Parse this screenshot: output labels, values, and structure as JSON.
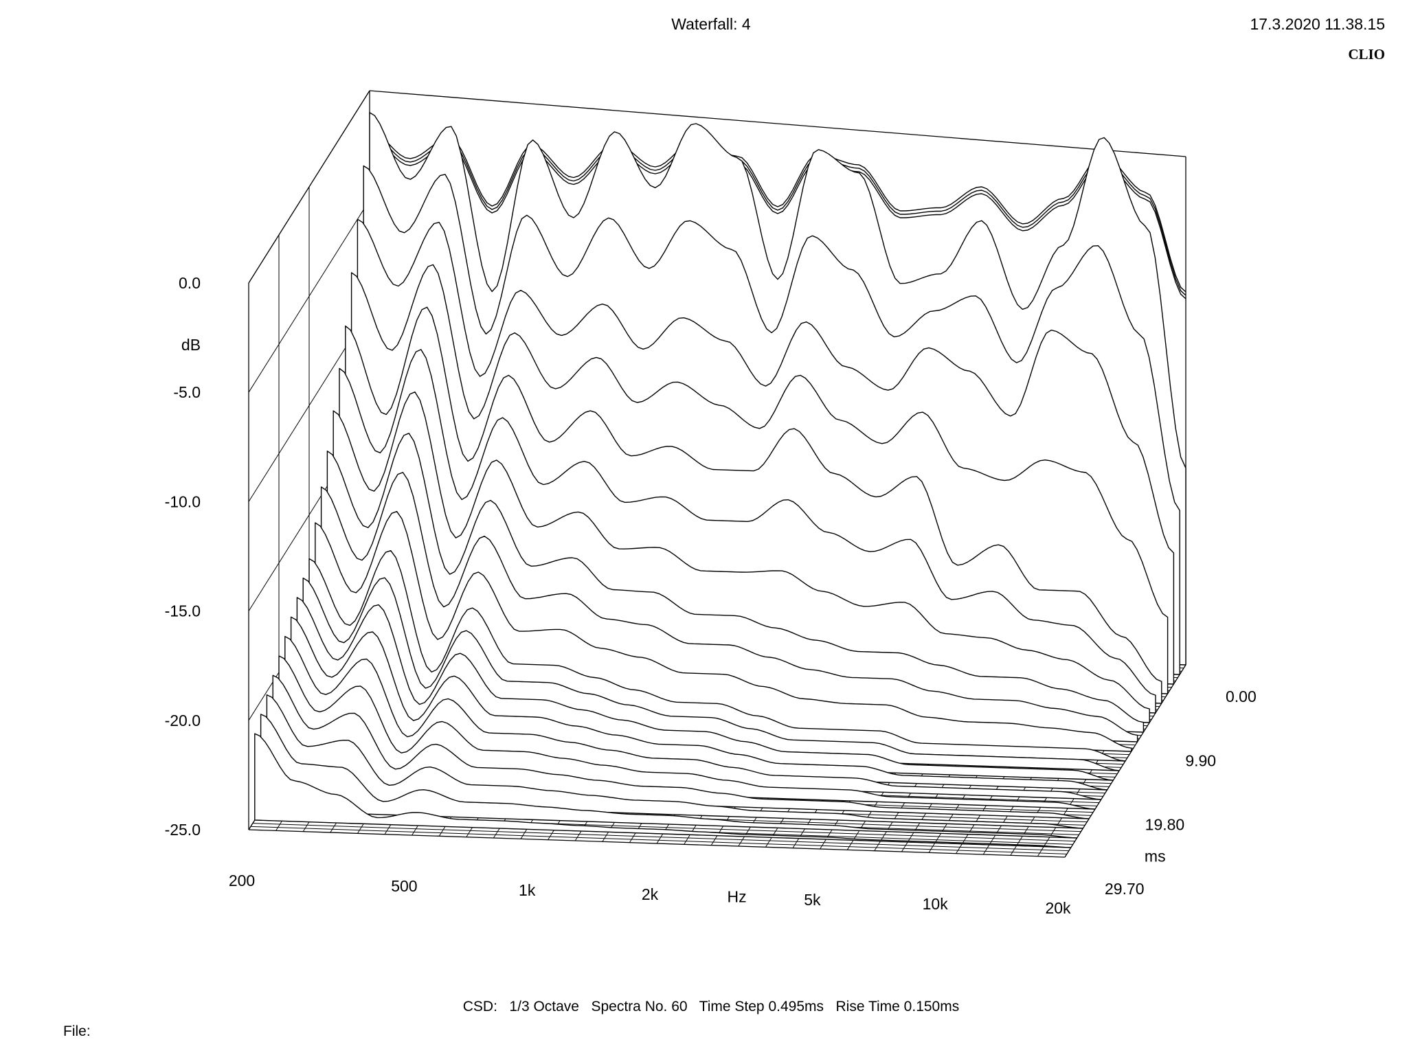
{
  "header": {
    "title": "Waterfall: 4",
    "timestamp": "17.3.2020 11.38.15",
    "brand": "CLIO"
  },
  "footer": {
    "settings": "CSD:   1/3 Octave   Spectra No. 60   Time Step 0.495ms   Rise Time 0.150ms",
    "file_label": "File:"
  },
  "chart_data": {
    "type": "waterfall",
    "title": "Waterfall: 4",
    "subtitle": "CSD:   1/3 Octave   Spectra No. 60   Time Step 0.495ms   Rise Time 0.150ms",
    "x_axis": {
      "label": "Hz",
      "scale": "log",
      "range": [
        200,
        20000
      ],
      "ticks": [
        200,
        500,
        1000,
        2000,
        5000,
        10000,
        20000
      ],
      "tick_labels": [
        "200",
        "500",
        "1k",
        "2k",
        "5k",
        "10k",
        "20k"
      ]
    },
    "y_axis": {
      "label": "dB",
      "range": [
        -25,
        0
      ],
      "ticks": [
        0,
        -5,
        -10,
        -15,
        -20,
        -25
      ],
      "tick_labels": [
        "0.0",
        "-5.0",
        "-10.0",
        "-15.0",
        "-20.0",
        "-25.0"
      ]
    },
    "z_axis": {
      "label": "ms",
      "range": [
        0,
        29.7
      ],
      "ticks": [
        0,
        9.9,
        19.8,
        29.7
      ],
      "tick_labels": [
        "0.00",
        "9.90",
        "19.80",
        "29.70"
      ]
    },
    "spectra_count": 60,
    "time_step_ms": 0.495,
    "rise_time_ms": 0.15,
    "frequency_points_hz": [
      200,
      250,
      315,
      400,
      500,
      630,
      800,
      1000,
      1250,
      1600,
      2000,
      2500,
      3150,
      4000,
      5000,
      6300,
      8000,
      10000,
      12500,
      16000,
      20000
    ],
    "series": [
      {
        "time_ms": 0.0,
        "db": [
          -1,
          -4,
          -1.5,
          -9,
          -2,
          -5.5,
          -1.5,
          -4,
          -1,
          -2.5,
          -8,
          -2,
          -3,
          -8,
          -7.5,
          -5,
          -9,
          -6,
          -1,
          -5,
          -16
        ]
      },
      {
        "time_ms": 2.97,
        "db": [
          -5,
          -8,
          -5,
          -12,
          -8,
          -10,
          -8.5,
          -10.5,
          -9,
          -10,
          -12,
          -9,
          -11,
          -12,
          -10,
          -11,
          -13,
          -9,
          -10,
          -14,
          -19
        ]
      },
      {
        "time_ms": 5.94,
        "db": [
          -9,
          -13,
          -8,
          -15,
          -11,
          -14,
          -12.5,
          -14.5,
          -14,
          -15,
          -15,
          -13,
          -15,
          -16,
          -15,
          -19,
          -18,
          -20,
          -20,
          -22,
          -24
        ]
      },
      {
        "time_ms": 9.9,
        "db": [
          -13,
          -16.5,
          -12,
          -18.5,
          -15,
          -18,
          -17.5,
          -19,
          -19,
          -20,
          -20,
          -20.5,
          -21,
          -21.5,
          -21.5,
          -22,
          -22.5,
          -22.5,
          -23,
          -23.5,
          -24.5
        ]
      },
      {
        "time_ms": 14.85,
        "db": [
          -17,
          -20,
          -16.5,
          -22,
          -19,
          -21.5,
          -21.5,
          -22,
          -22.5,
          -23,
          -23,
          -23.5,
          -24,
          -24,
          -24,
          -24.5,
          -24.5,
          -24.5,
          -24.5,
          -24.5,
          -25
        ]
      },
      {
        "time_ms": 29.7,
        "db": [
          -21.5,
          -23.5,
          -24.5,
          -25,
          -25,
          -25,
          -25,
          -25,
          -25,
          -25,
          -25,
          -25,
          -25,
          -25,
          -25,
          -25,
          -25,
          -25,
          -25,
          -25,
          -25
        ]
      }
    ]
  }
}
